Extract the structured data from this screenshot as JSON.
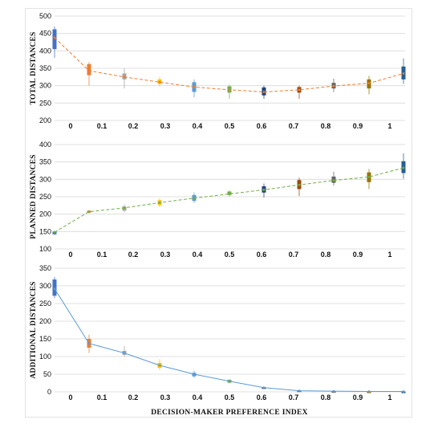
{
  "chart_data": [
    {
      "type": "line",
      "ylabel": "TOTAL DISTANCES",
      "ylim": [
        200,
        500
      ],
      "yticks": [
        200,
        250,
        300,
        350,
        400,
        450,
        500
      ],
      "categories": [
        "0",
        "0.1",
        "0.2",
        "0.3",
        "0.4",
        "0.5",
        "0.6",
        "0.7",
        "0.8",
        "0.9",
        "1"
      ],
      "line_color": "#ED7D31",
      "line_style": "dashed",
      "values": [
        438,
        343,
        325,
        310,
        296,
        288,
        282,
        288,
        299,
        307,
        335
      ],
      "boxes": [
        {
          "low": 380,
          "q1": 405,
          "q3": 462,
          "high": 470
        },
        {
          "low": 300,
          "q1": 330,
          "q3": 362,
          "high": 368
        },
        {
          "low": 292,
          "q1": 318,
          "q3": 335,
          "high": 350
        },
        {
          "low": 298,
          "q1": 305,
          "q3": 318,
          "high": 325
        },
        {
          "low": 266,
          "q1": 282,
          "q3": 310,
          "high": 318
        },
        {
          "low": 262,
          "q1": 280,
          "q3": 298,
          "high": 303
        },
        {
          "low": 262,
          "q1": 272,
          "q3": 295,
          "high": 300
        },
        {
          "low": 262,
          "q1": 280,
          "q3": 296,
          "high": 300
        },
        {
          "low": 282,
          "q1": 292,
          "q3": 308,
          "high": 320
        },
        {
          "low": 275,
          "q1": 292,
          "q3": 318,
          "high": 328
        },
        {
          "low": 305,
          "q1": 318,
          "q3": 355,
          "high": 378
        }
      ],
      "box_colors": [
        "#4472C4",
        "#ED7D31",
        "#A5A5A5",
        "#FFC000",
        "#5B9BD5",
        "#70AD47",
        "#264478",
        "#9E480E",
        "#636363",
        "#997300",
        "#255E91"
      ],
      "grid": true
    },
    {
      "type": "line",
      "ylabel": "PLANNED DISTANCES",
      "ylim": [
        100,
        400
      ],
      "yticks": [
        100,
        150,
        200,
        250,
        300,
        350,
        400
      ],
      "categories": [
        "0",
        "0.1",
        "0.2",
        "0.3",
        "0.4",
        "0.5",
        "0.6",
        "0.7",
        "0.8",
        "0.9",
        "1"
      ],
      "line_color": "#70AD47",
      "line_style": "dashed",
      "values": [
        148,
        207,
        218,
        233,
        246,
        258,
        270,
        284,
        297,
        307,
        333
      ],
      "boxes": [
        {
          "low": 140,
          "q1": 142,
          "q3": 150,
          "high": 152
        },
        {
          "low": 202,
          "q1": 204,
          "q3": 210,
          "high": 212
        },
        {
          "low": 205,
          "q1": 210,
          "q3": 222,
          "high": 228
        },
        {
          "low": 220,
          "q1": 226,
          "q3": 240,
          "high": 245
        },
        {
          "low": 232,
          "q1": 238,
          "q3": 255,
          "high": 262
        },
        {
          "low": 250,
          "q1": 255,
          "q3": 265,
          "high": 268
        },
        {
          "low": 248,
          "q1": 262,
          "q3": 280,
          "high": 288
        },
        {
          "low": 252,
          "q1": 272,
          "q3": 298,
          "high": 305
        },
        {
          "low": 282,
          "q1": 290,
          "q3": 308,
          "high": 322
        },
        {
          "low": 272,
          "q1": 292,
          "q3": 320,
          "high": 330
        },
        {
          "low": 302,
          "q1": 318,
          "q3": 352,
          "high": 375
        }
      ],
      "box_colors": [
        "#4472C4",
        "#ED7D31",
        "#A5A5A5",
        "#FFC000",
        "#5B9BD5",
        "#70AD47",
        "#264478",
        "#9E480E",
        "#636363",
        "#997300",
        "#255E91"
      ],
      "grid": true
    },
    {
      "type": "line",
      "ylabel": "ADDITIONAL DISTANCES",
      "xlabel": "DECISION-MAKER PREFERENCE INDEX",
      "ylim": [
        0,
        350
      ],
      "yticks": [
        0,
        50,
        100,
        150,
        200,
        250,
        300,
        350
      ],
      "categories": [
        "0",
        "0.1",
        "0.2",
        "0.3",
        "0.4",
        "0.5",
        "0.6",
        "0.7",
        "0.8",
        "0.9",
        "1"
      ],
      "line_color": "#5B9BD5",
      "line_style": "solid",
      "values": [
        292,
        137,
        110,
        75,
        50,
        30,
        12,
        3,
        2,
        1,
        1
      ],
      "boxes": [
        {
          "low": 265,
          "q1": 272,
          "q3": 318,
          "high": 325
        },
        {
          "low": 110,
          "q1": 125,
          "q3": 150,
          "high": 162
        },
        {
          "low": 100,
          "q1": 105,
          "q3": 116,
          "high": 130
        },
        {
          "low": 62,
          "q1": 68,
          "q3": 82,
          "high": 92
        },
        {
          "low": 40,
          "q1": 44,
          "q3": 54,
          "high": 60
        },
        {
          "low": 24,
          "q1": 26,
          "q3": 34,
          "high": 36
        },
        {
          "low": 8,
          "q1": 9,
          "q3": 13,
          "high": 15
        },
        {
          "low": 1,
          "q1": 2,
          "q3": 4,
          "high": 5
        },
        {
          "low": 0,
          "q1": 1,
          "q3": 2,
          "high": 3
        },
        {
          "low": 0,
          "q1": 0,
          "q3": 1,
          "high": 2
        },
        {
          "low": 0,
          "q1": 0,
          "q3": 1,
          "high": 2
        }
      ],
      "box_colors": [
        "#4472C4",
        "#ED7D31",
        "#A5A5A5",
        "#FFC000",
        "#5B9BD5",
        "#70AD47",
        "#264478",
        "#9E480E",
        "#636363",
        "#997300",
        "#255E91"
      ],
      "grid": true
    }
  ]
}
